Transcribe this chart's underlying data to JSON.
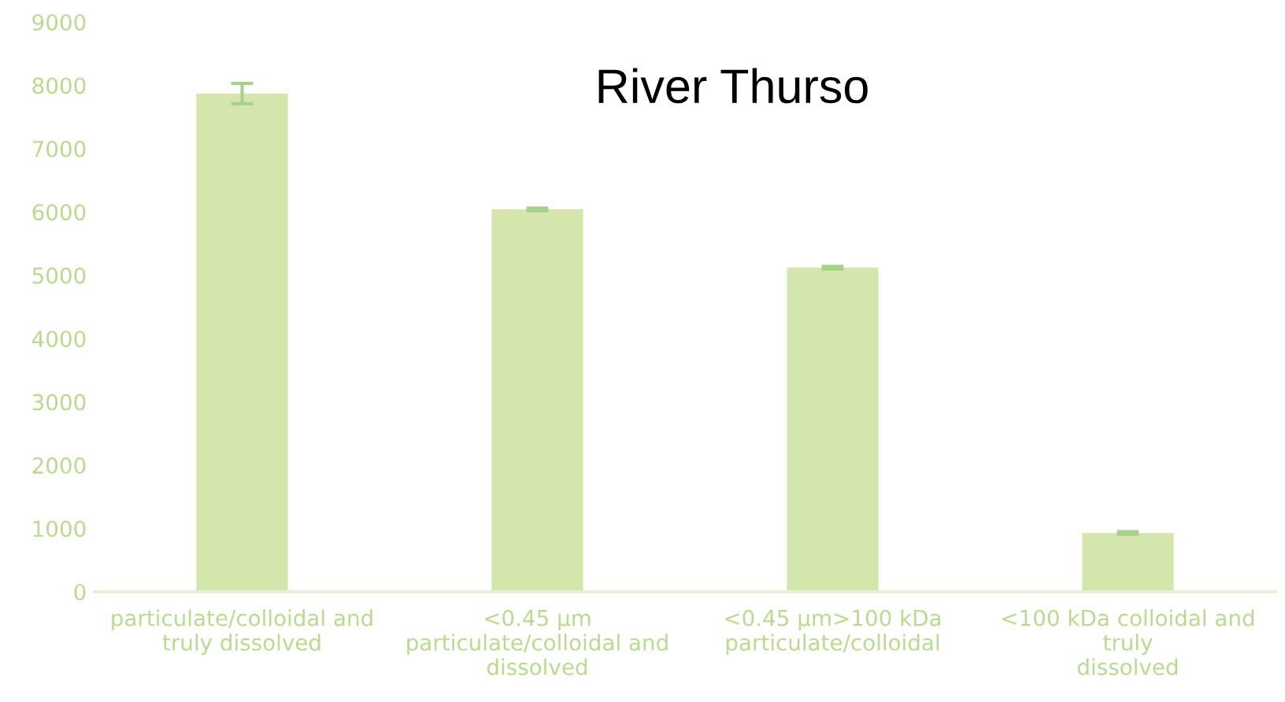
{
  "chart_data": {
    "type": "bar",
    "title": "River Thurso",
    "categories": [
      "particulate/colloidal and truly dissolved",
      "<0.45 µm particulate/colloidal and dissolved",
      "<0.45 µm>100 kDa particulate/colloidal",
      "<100 kDa colloidal and truly dissolved"
    ],
    "values": [
      7870,
      6040,
      5120,
      930
    ],
    "errors": [
      160,
      20,
      20,
      20
    ],
    "color": "#d3e7ad",
    "ylim": [
      0,
      9000
    ],
    "yticks": [
      0,
      1000,
      2000,
      3000,
      4000,
      5000,
      6000,
      7000,
      8000,
      9000
    ],
    "grid": false,
    "legend": false
  }
}
